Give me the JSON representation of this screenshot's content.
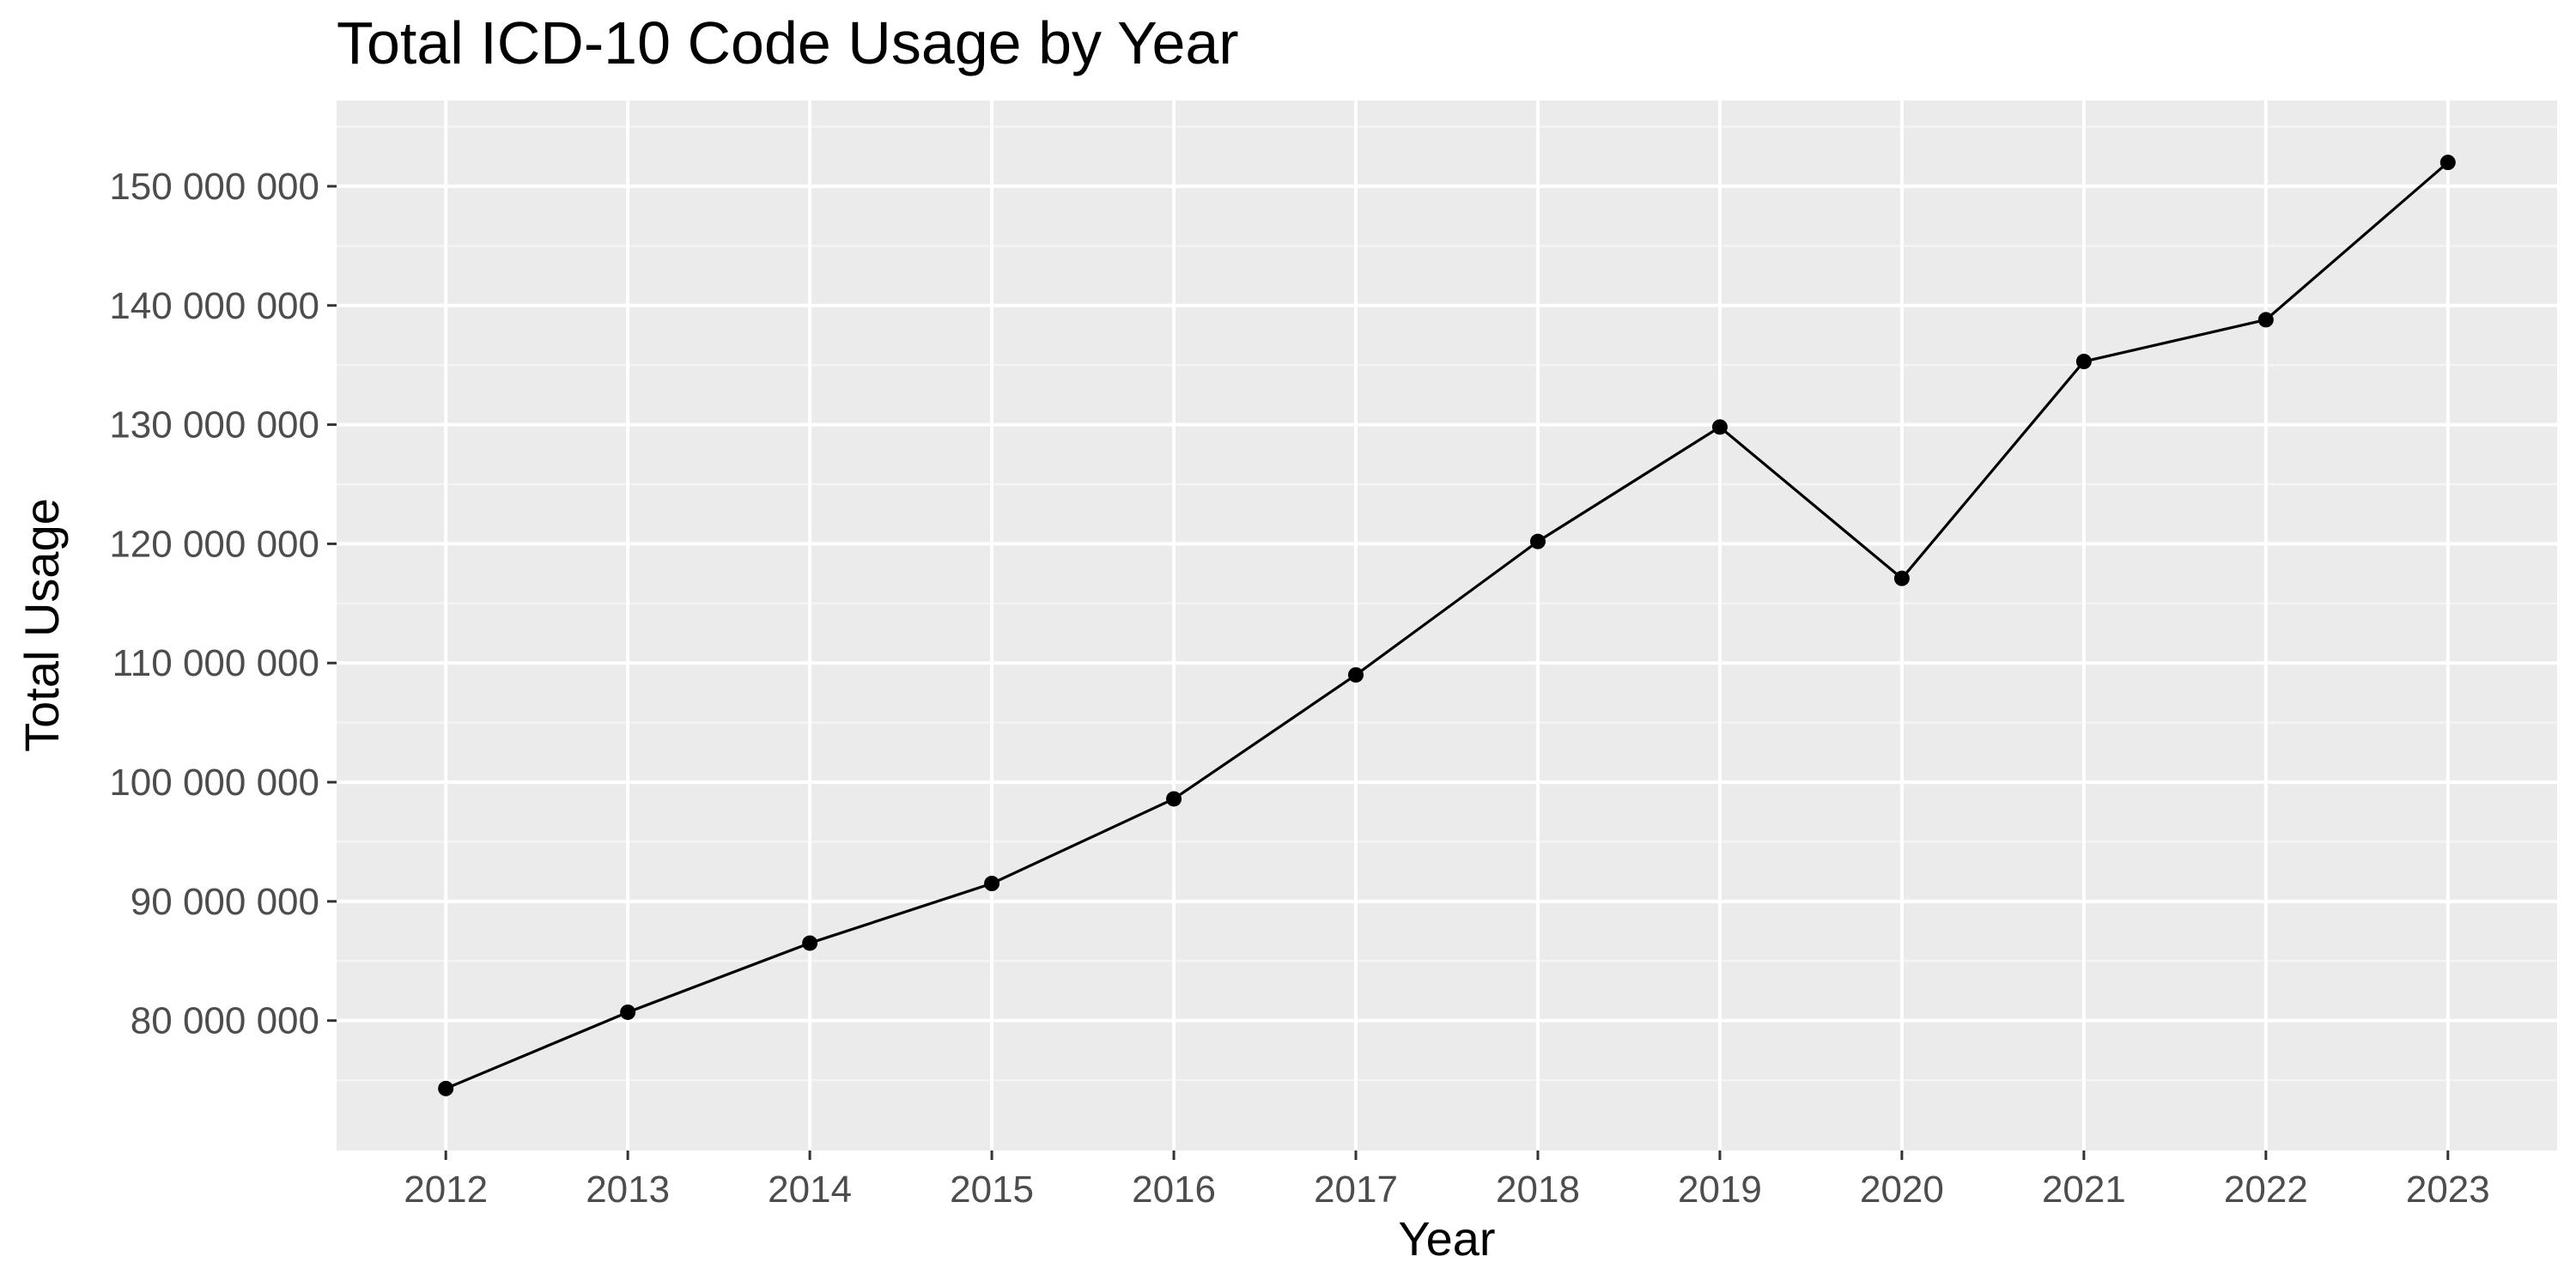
{
  "chart_data": {
    "type": "line",
    "title": "Total ICD-10 Code Usage by Year",
    "xlabel": "Year",
    "ylabel": "Total Usage",
    "x": [
      2012,
      2013,
      2014,
      2015,
      2016,
      2017,
      2018,
      2019,
      2020,
      2021,
      2022,
      2023
    ],
    "x_tick_labels": [
      "2012",
      "2013",
      "2014",
      "2015",
      "2016",
      "2017",
      "2018",
      "2019",
      "2020",
      "2021",
      "2022",
      "2023"
    ],
    "y_ticks": [
      80000000,
      90000000,
      100000000,
      110000000,
      120000000,
      130000000,
      140000000,
      150000000
    ],
    "y_tick_labels": [
      "80 000 000",
      "90 000 000",
      "100 000 000",
      "110 000 000",
      "120 000 000",
      "130 000 000",
      "140 000 000",
      "150 000 000"
    ],
    "series": [
      {
        "values": [
          74300000,
          80700000,
          86500000,
          91500000,
          98600000,
          109000000,
          120200000,
          129800000,
          117100000,
          135300000,
          138800000,
          152000000
        ]
      }
    ],
    "xlim": [
      2011.4,
      2023.6
    ],
    "ylim": [
      69100000,
      157200000
    ],
    "grid": true,
    "legend": "none",
    "colors": {
      "panel_background": "#ebebeb",
      "grid_major": "#ffffff",
      "grid_minor": "#f5f5f5",
      "line": "#000000",
      "point": "#000000",
      "tick_label": "#4d4d4d",
      "tick_mark": "#333333"
    }
  }
}
